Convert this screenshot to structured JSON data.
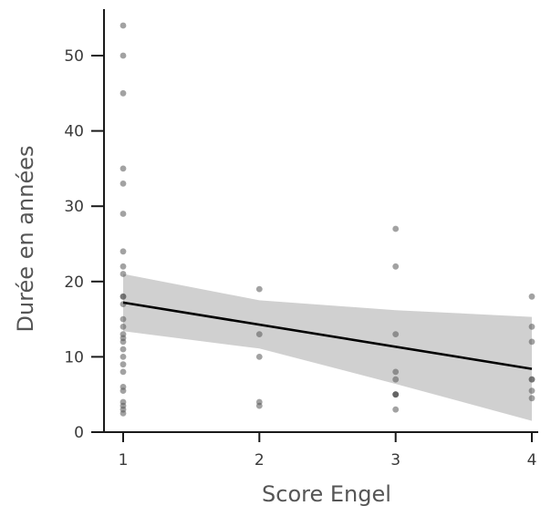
{
  "chart_data": {
    "type": "scatter",
    "title": "",
    "xlabel": "Score Engel",
    "ylabel": "Durée en années",
    "xlim": [
      0.9,
      4.1
    ],
    "ylim": [
      0,
      57
    ],
    "xticks": [
      1,
      2,
      3,
      4
    ],
    "yticks": [
      0,
      10,
      20,
      30,
      40,
      50
    ],
    "grid": false,
    "legend": "none",
    "colors": {
      "points": "#555555",
      "fit_line": "#000000",
      "confidence_band": "#c8c8c8",
      "axis": "#1a1a1a"
    },
    "series": [
      {
        "kind": "points",
        "x": [
          1,
          1,
          1,
          1,
          1,
          1,
          1,
          1,
          1,
          1,
          1,
          1,
          1,
          1,
          1,
          1,
          1,
          1,
          1,
          1,
          1,
          1,
          1,
          1,
          1,
          1,
          1,
          2,
          2,
          2,
          2,
          2,
          3,
          3,
          3,
          3,
          3,
          3,
          3,
          3,
          3,
          4,
          4,
          4,
          4,
          4,
          4,
          4
        ],
        "y": [
          54,
          50,
          45,
          35,
          33,
          29,
          24,
          22,
          21,
          18,
          18,
          15,
          14,
          13,
          12.5,
          12,
          11,
          10,
          9,
          8,
          6,
          5.5,
          4,
          3.5,
          3,
          2.5,
          17,
          19,
          13,
          10,
          4,
          3.5,
          27,
          22,
          13,
          8,
          7,
          5,
          5,
          5,
          3,
          18,
          14,
          12,
          7,
          5.5,
          4.5,
          7
        ]
      },
      {
        "kind": "fit",
        "x": [
          1,
          4
        ],
        "y": [
          17.2,
          8.4
        ]
      },
      {
        "kind": "confidence_band",
        "x": [
          1,
          2,
          3,
          4
        ],
        "upper": [
          21.0,
          17.5,
          16.2,
          15.3
        ],
        "lower": [
          13.4,
          11.1,
          6.4,
          1.5
        ]
      }
    ]
  }
}
